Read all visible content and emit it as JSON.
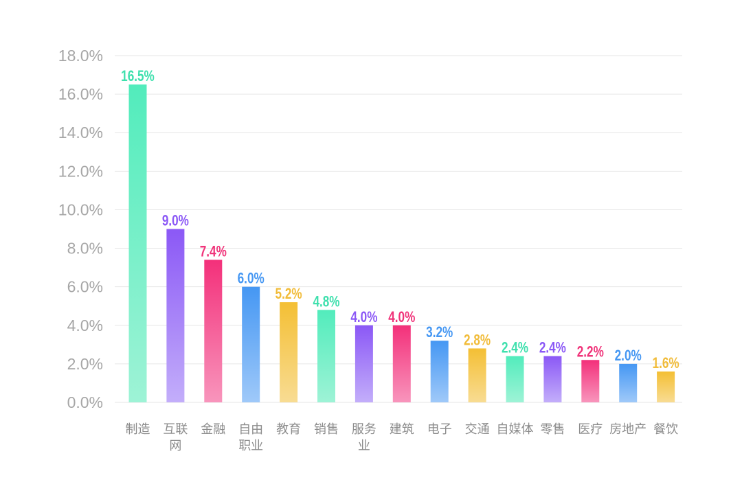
{
  "chart_data": {
    "type": "bar",
    "categories": [
      "制造",
      "互联网",
      "金融",
      "自由职业",
      "教育",
      "销售",
      "服务业",
      "建筑",
      "电子",
      "交通",
      "自媒体",
      "零售",
      "医疗",
      "房地产",
      "餐饮"
    ],
    "category_lines": [
      [
        "制造"
      ],
      [
        "互联",
        "网"
      ],
      [
        "金融"
      ],
      [
        "自由",
        "职业"
      ],
      [
        "教育"
      ],
      [
        "销售"
      ],
      [
        "服务",
        "业"
      ],
      [
        "建筑"
      ],
      [
        "电子"
      ],
      [
        "交通"
      ],
      [
        "自媒体"
      ],
      [
        "零售"
      ],
      [
        "医疗"
      ],
      [
        "房地产"
      ],
      [
        "餐饮"
      ]
    ],
    "values": [
      16.5,
      9.0,
      7.4,
      6.0,
      5.2,
      4.8,
      4.0,
      4.0,
      3.2,
      2.8,
      2.4,
      2.4,
      2.2,
      2.0,
      1.6
    ],
    "value_labels": [
      "16.5%",
      "9.0%",
      "7.4%",
      "6.0%",
      "5.2%",
      "4.8%",
      "4.0%",
      "4.0%",
      "3.2%",
      "2.8%",
      "2.4%",
      "2.4%",
      "2.2%",
      "2.0%",
      "1.6%"
    ],
    "yticks": [
      "0.0%",
      "2.0%",
      "4.0%",
      "6.0%",
      "8.0%",
      "10.0%",
      "12.0%",
      "14.0%",
      "16.0%",
      "18.0%"
    ],
    "ylim": [
      0,
      18
    ],
    "grid": true,
    "bar_colors": [
      {
        "top": "#52ecbc",
        "bottom": "#9ef3d6",
        "label": "#3ee0ad"
      },
      {
        "top": "#8b58f6",
        "bottom": "#c3aefa",
        "label": "#8b58f6"
      },
      {
        "top": "#f3307a",
        "bottom": "#f895bc",
        "label": "#f0347a"
      },
      {
        "top": "#4597f3",
        "bottom": "#9fc9f9",
        "label": "#4597f3"
      },
      {
        "top": "#f4bf34",
        "bottom": "#f8dc93",
        "label": "#f1bc3a"
      }
    ]
  }
}
